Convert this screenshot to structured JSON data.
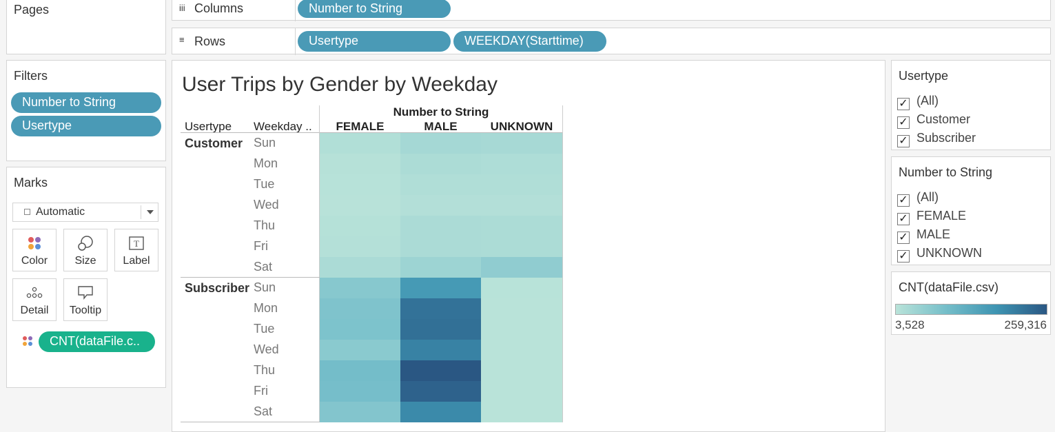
{
  "pages": {
    "title": "Pages"
  },
  "shelves": {
    "columns": {
      "icon": "iii",
      "label": "Columns",
      "pills": [
        "Number to String"
      ]
    },
    "rows": {
      "icon": "≡",
      "label": "Rows",
      "pills": [
        "Usertype",
        "WEEKDAY(Starttime)"
      ]
    }
  },
  "filters": {
    "title": "Filters",
    "pills": [
      "Number to String",
      "Usertype"
    ]
  },
  "marks": {
    "title": "Marks",
    "mark_type": "Automatic",
    "buttons": [
      {
        "label": "Color",
        "icon": "color-dots-icon"
      },
      {
        "label": "Size",
        "icon": "size-icon"
      },
      {
        "label": "Label",
        "icon": "label-T-icon"
      },
      {
        "label": "Detail",
        "icon": "detail-dots-icon"
      },
      {
        "label": "Tooltip",
        "icon": "tooltip-icon"
      }
    ],
    "field_pill": "CNT(dataFile.c.."
  },
  "viz": {
    "title": "User Trips by Gender by Weekday",
    "col_header_group": "Number to String",
    "row_header_usertype": "Usertype",
    "row_header_weekday": "Weekday ..",
    "columns": [
      "FEMALE",
      "MALE",
      "UNKNOWN"
    ],
    "groups": [
      {
        "name": "Customer",
        "days": [
          "Sun",
          "Mon",
          "Tue",
          "Wed",
          "Thu",
          "Fri",
          "Sat"
        ]
      },
      {
        "name": "Subscriber",
        "days": [
          "Sun",
          "Mon",
          "Tue",
          "Wed",
          "Thu",
          "Fri",
          "Sat"
        ]
      }
    ]
  },
  "usertype_filter": {
    "title": "Usertype",
    "items": [
      "(All)",
      "Customer",
      "Subscriber"
    ]
  },
  "gender_filter": {
    "title": "Number to String",
    "items": [
      "(All)",
      "FEMALE",
      "MALE",
      "UNKNOWN"
    ]
  },
  "legend": {
    "title": "CNT(dataFile.csv)",
    "min_label": "3,528",
    "max_label": "259,316",
    "color_low": "#b9e3d9",
    "color_high": "#2a5783"
  },
  "chart_data": {
    "type": "heatmap",
    "title": "User Trips by Gender by Weekday",
    "columns": [
      "FEMALE",
      "MALE",
      "UNKNOWN"
    ],
    "rows": [
      "Customer Sun",
      "Customer Mon",
      "Customer Tue",
      "Customer Wed",
      "Customer Thu",
      "Customer Fri",
      "Customer Sat",
      "Subscriber Sun",
      "Subscriber Mon",
      "Subscriber Tue",
      "Subscriber Wed",
      "Subscriber Thu",
      "Subscriber Fri",
      "Subscriber Sat"
    ],
    "values": [
      [
        14000,
        30000,
        27000
      ],
      [
        8000,
        20000,
        18000
      ],
      [
        6000,
        16000,
        15000
      ],
      [
        5000,
        12000,
        12000
      ],
      [
        9000,
        22000,
        20000
      ],
      [
        10000,
        22000,
        20000
      ],
      [
        22000,
        40000,
        58000
      ],
      [
        70000,
        170000,
        4500
      ],
      [
        80000,
        225000,
        4000
      ],
      [
        82000,
        228000,
        3900
      ],
      [
        65000,
        205000,
        3800
      ],
      [
        95000,
        259316,
        3600
      ],
      [
        92000,
        245000,
        3700
      ],
      [
        75000,
        195000,
        3528
      ]
    ],
    "color_range": [
      3528,
      259316
    ]
  }
}
